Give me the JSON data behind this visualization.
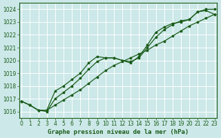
{
  "title": "Graphe pression niveau de la mer (hPa)",
  "bg_color": "#cce8e8",
  "grid_color": "#ffffff",
  "line_color": "#1a5c1a",
  "xlim": [
    -0.3,
    23.3
  ],
  "ylim": [
    1015.5,
    1024.5
  ],
  "xticks": [
    0,
    1,
    2,
    3,
    4,
    5,
    6,
    7,
    8,
    9,
    10,
    11,
    12,
    13,
    14,
    15,
    16,
    17,
    18,
    19,
    20,
    21,
    22,
    23
  ],
  "yticks": [
    1016,
    1017,
    1018,
    1019,
    1020,
    1021,
    1022,
    1023,
    1024
  ],
  "line1_x": [
    0,
    1,
    2,
    3,
    4,
    5,
    6,
    7,
    8,
    9,
    10,
    11,
    12,
    13,
    14,
    15,
    16,
    17,
    18,
    19,
    20,
    21,
    22,
    23
  ],
  "line1_y": [
    1016.8,
    1016.5,
    1016.1,
    1016.0,
    1017.0,
    1017.5,
    1018.0,
    1018.6,
    1019.3,
    1019.9,
    1020.2,
    1020.2,
    1020.0,
    1019.9,
    1020.2,
    1021.0,
    1021.8,
    1022.4,
    1022.8,
    1023.1,
    1023.2,
    1023.8,
    1024.0,
    1024.0
  ],
  "line2_x": [
    0,
    1,
    2,
    3,
    4,
    5,
    6,
    7,
    8,
    9,
    10,
    11,
    12,
    13,
    14,
    15,
    16,
    17,
    18,
    19,
    20,
    21,
    22,
    23
  ],
  "line2_y": [
    1016.8,
    1016.5,
    1016.1,
    1016.1,
    1017.6,
    1018.0,
    1018.5,
    1019.0,
    1019.8,
    1020.3,
    1020.2,
    1020.2,
    1020.0,
    1019.8,
    1020.3,
    1021.2,
    1022.2,
    1022.6,
    1022.9,
    1023.0,
    1023.2,
    1023.8,
    1023.9,
    1023.6
  ],
  "line3_x": [
    0,
    1,
    2,
    3,
    4,
    5,
    6,
    7,
    8,
    9,
    10,
    11,
    12,
    13,
    14,
    15,
    16,
    17,
    18,
    19,
    20,
    21,
    22,
    23
  ],
  "line3_y": [
    1016.8,
    1016.5,
    1016.1,
    1016.1,
    1016.5,
    1016.9,
    1017.3,
    1017.7,
    1018.2,
    1018.7,
    1019.2,
    1019.6,
    1019.9,
    1020.2,
    1020.5,
    1020.8,
    1021.2,
    1021.5,
    1021.9,
    1022.3,
    1022.7,
    1023.0,
    1023.3,
    1023.6
  ],
  "label_fontsize": 6.5,
  "tick_fontsize": 5.5
}
